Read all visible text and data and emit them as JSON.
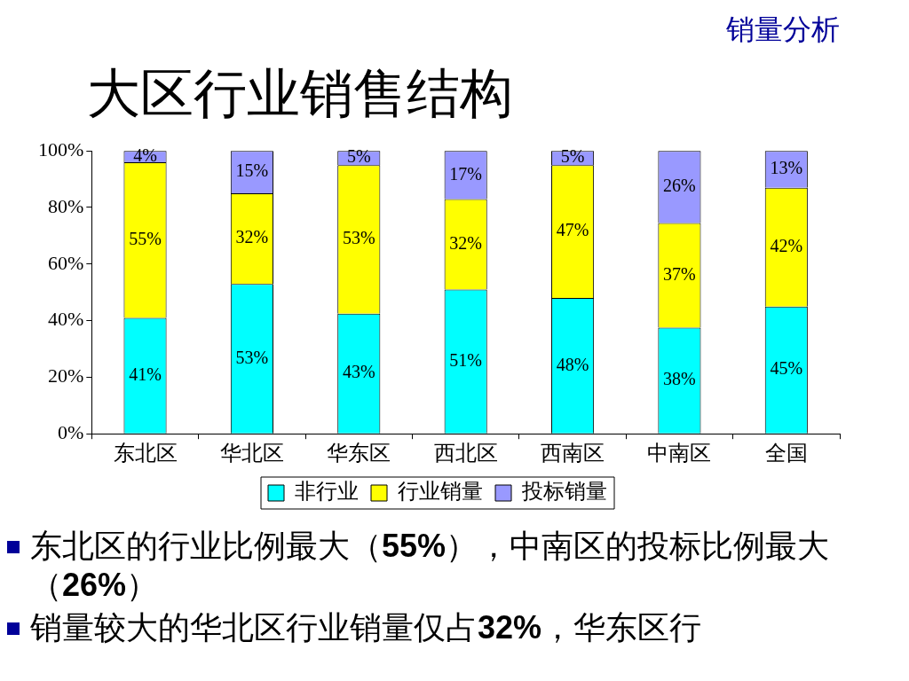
{
  "chart_data": {
    "type": "bar",
    "title": "大区行业销售结构",
    "subtitle": "销量分析",
    "categories": [
      "东北区",
      "华北区",
      "华东区",
      "西北区",
      "西南区",
      "中南区",
      "全国"
    ],
    "series": [
      {
        "name": "非行业",
        "color": "#00ffff",
        "values": [
          41,
          53,
          42.5,
          51,
          48,
          37.5,
          45
        ],
        "value_labels": [
          "41%",
          "53%",
          "43%",
          "51%",
          "48%",
          "38%",
          "45%"
        ]
      },
      {
        "name": "行业销量",
        "color": "#ffff00",
        "values": [
          55,
          32,
          52.5,
          32,
          47,
          37,
          42
        ],
        "value_labels": [
          "55%",
          "32%",
          "53%",
          "32%",
          "47%",
          "37%",
          "42%"
        ]
      },
      {
        "name": "投标销量",
        "color": "#9999ff",
        "values": [
          4,
          15,
          5,
          17,
          5,
          25.5,
          13
        ],
        "value_labels": [
          "4%",
          "15%",
          "5%",
          "17%",
          "5%",
          "26%",
          "13%"
        ]
      }
    ],
    "stacked": true,
    "ylim": [
      0,
      100
    ],
    "yticks": [
      {
        "value": 0,
        "label": "0%"
      },
      {
        "value": 20,
        "label": "20%"
      },
      {
        "value": 40,
        "label": "40%"
      },
      {
        "value": 60,
        "label": "60%"
      },
      {
        "value": 80,
        "label": "80%"
      },
      {
        "value": 100,
        "label": "100%"
      }
    ],
    "grid": false,
    "legend": "bottom",
    "annotations": [
      "东北区的行业比例最大（55%），中南区的投标比例最大（26%）",
      "销量较大的华北区行业销量仅占32%，华东区行"
    ]
  }
}
